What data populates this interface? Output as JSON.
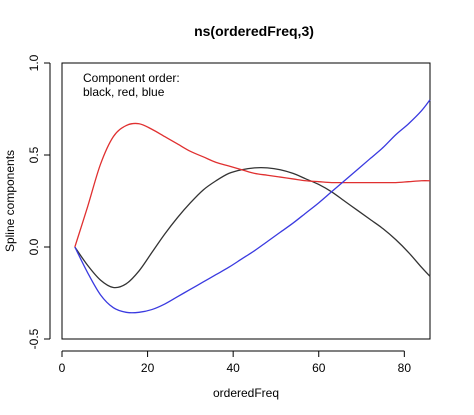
{
  "chart_data": {
    "type": "line",
    "title": "ns(orderedFreq,3)",
    "xlabel": "orderedFreq",
    "ylabel": "Spline components",
    "xlim": [
      0,
      86
    ],
    "ylim": [
      -0.5,
      1.0
    ],
    "xticks": [
      0,
      20,
      40,
      60,
      80
    ],
    "xtick_labels": [
      "0",
      "20",
      "40",
      "60",
      "80"
    ],
    "yticks": [
      -0.5,
      0.0,
      0.5,
      1.0
    ],
    "ytick_labels": [
      "-0.5",
      "0.0",
      "0.5",
      "1.0"
    ],
    "grid": false,
    "annotation": [
      "Component order:",
      "black, red, blue"
    ],
    "series": [
      {
        "color": "#333333",
        "x": [
          3,
          6,
          9,
          12,
          15,
          18,
          21,
          24,
          27,
          30,
          33,
          36,
          39,
          42,
          45,
          48,
          51,
          54,
          57,
          60,
          63,
          66,
          69,
          72,
          75,
          78,
          81,
          84,
          86
        ],
        "y": [
          0.0,
          -0.1,
          -0.18,
          -0.22,
          -0.2,
          -0.13,
          -0.03,
          0.07,
          0.16,
          0.24,
          0.31,
          0.36,
          0.4,
          0.42,
          0.43,
          0.43,
          0.42,
          0.4,
          0.37,
          0.34,
          0.3,
          0.25,
          0.2,
          0.15,
          0.1,
          0.04,
          -0.03,
          -0.11,
          -0.16
        ]
      },
      {
        "color": "#e03030",
        "x": [
          3,
          6,
          9,
          12,
          15,
          18,
          21,
          24,
          27,
          30,
          33,
          36,
          39,
          42,
          45,
          48,
          51,
          54,
          57,
          60,
          63,
          66,
          69,
          72,
          75,
          78,
          81,
          84,
          86
        ],
        "y": [
          0.0,
          0.22,
          0.45,
          0.6,
          0.66,
          0.67,
          0.64,
          0.6,
          0.56,
          0.52,
          0.49,
          0.46,
          0.44,
          0.42,
          0.4,
          0.39,
          0.38,
          0.37,
          0.36,
          0.355,
          0.35,
          0.35,
          0.35,
          0.35,
          0.35,
          0.35,
          0.355,
          0.36,
          0.36
        ]
      },
      {
        "color": "#3a3ae0",
        "x": [
          3,
          6,
          9,
          12,
          15,
          18,
          21,
          24,
          27,
          30,
          33,
          36,
          39,
          42,
          45,
          48,
          51,
          54,
          57,
          60,
          63,
          66,
          69,
          72,
          75,
          78,
          81,
          84,
          86
        ],
        "y": [
          0.0,
          -0.14,
          -0.26,
          -0.33,
          -0.355,
          -0.355,
          -0.34,
          -0.31,
          -0.27,
          -0.23,
          -0.19,
          -0.15,
          -0.11,
          -0.065,
          -0.02,
          0.03,
          0.08,
          0.13,
          0.185,
          0.24,
          0.3,
          0.36,
          0.42,
          0.48,
          0.54,
          0.61,
          0.67,
          0.74,
          0.8
        ]
      }
    ]
  }
}
